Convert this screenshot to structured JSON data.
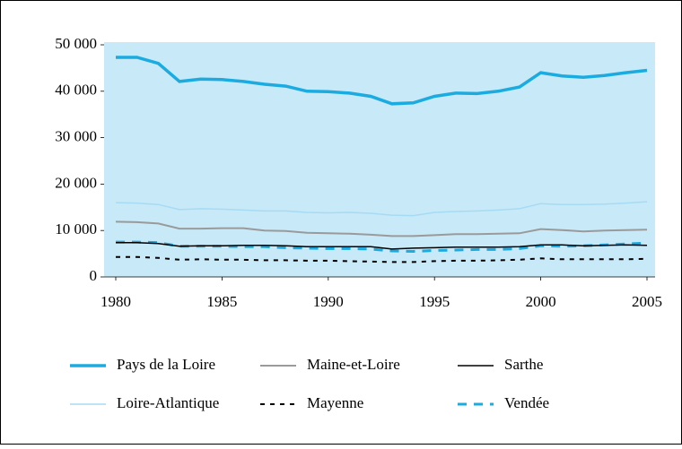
{
  "chart_data": {
    "type": "line",
    "x": [
      1980,
      1981,
      1982,
      1983,
      1984,
      1985,
      1986,
      1987,
      1988,
      1989,
      1990,
      1991,
      1992,
      1993,
      1994,
      1995,
      1996,
      1997,
      1998,
      1999,
      2000,
      2001,
      2002,
      2003,
      2004,
      2005
    ],
    "xlim": [
      1980,
      2005
    ],
    "xticks": [
      1980,
      1985,
      1990,
      1995,
      2000,
      2005
    ],
    "ylim": [
      0,
      50000
    ],
    "yticks": [
      0,
      {
        "value": 10000,
        "label": "10 000"
      },
      {
        "value": 20000,
        "label": "20 000"
      },
      {
        "value": 30000,
        "label": "30 000"
      },
      {
        "value": 40000,
        "label": "40 000"
      },
      {
        "value": 50000,
        "label": "50 000"
      }
    ],
    "background": "#c8e9f8",
    "series": [
      {
        "name": "Pays de la Loire",
        "color": "#1aabe0",
        "dashed": false,
        "values": [
          47300,
          47300,
          46000,
          42100,
          42600,
          42500,
          42100,
          41500,
          41100,
          40000,
          39900,
          39600,
          38900,
          37300,
          37500,
          38900,
          39600,
          39500,
          40000,
          40900,
          44000,
          43300,
          43000,
          43400,
          44000,
          44500
        ]
      },
      {
        "name": "Maine-et-Loire",
        "color": "#9a9a9a",
        "dashed": false,
        "values": [
          11900,
          11800,
          11500,
          10400,
          10400,
          10500,
          10500,
          10000,
          9900,
          9500,
          9400,
          9300,
          9100,
          8800,
          8800,
          9000,
          9200,
          9200,
          9300,
          9400,
          10300,
          10100,
          9800,
          10000,
          10100,
          10200
        ]
      },
      {
        "name": "Sarthe",
        "color": "#000000",
        "dashed": false,
        "values": [
          7400,
          7400,
          7200,
          6600,
          6700,
          6700,
          6800,
          6800,
          6700,
          6500,
          6500,
          6500,
          6500,
          6000,
          6200,
          6300,
          6400,
          6400,
          6400,
          6500,
          6900,
          6900,
          6700,
          6800,
          6900,
          6800
        ]
      },
      {
        "name": "Loire-Atlantique",
        "color": "#a6dbf4",
        "dashed": false,
        "values": [
          16000,
          15900,
          15600,
          14500,
          14700,
          14600,
          14400,
          14200,
          14200,
          13900,
          13800,
          13900,
          13700,
          13300,
          13200,
          13900,
          14100,
          14200,
          14400,
          14700,
          15800,
          15600,
          15600,
          15700,
          15900,
          16200
        ]
      },
      {
        "name": "Mayenne",
        "color": "#000000",
        "dashed": true,
        "values": [
          4300,
          4300,
          4100,
          3700,
          3800,
          3700,
          3700,
          3600,
          3600,
          3500,
          3500,
          3400,
          3300,
          3200,
          3200,
          3400,
          3500,
          3500,
          3600,
          3700,
          4000,
          3800,
          3800,
          3800,
          3800,
          3900
        ]
      },
      {
        "name": "Vendée",
        "color": "#1aabe0",
        "dashed": true,
        "values": [
          7500,
          7500,
          7400,
          6600,
          6600,
          6600,
          6500,
          6500,
          6300,
          6200,
          6100,
          6100,
          6000,
          5600,
          5500,
          5700,
          5800,
          5900,
          5900,
          6100,
          6700,
          6600,
          6700,
          6900,
          7100,
          7300
        ]
      }
    ]
  }
}
